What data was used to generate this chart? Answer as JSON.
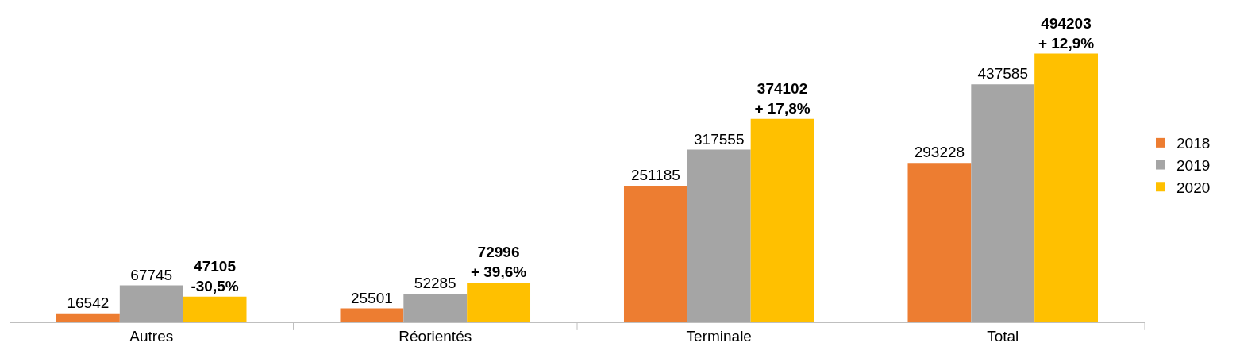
{
  "chart_data": {
    "type": "bar",
    "categories": [
      "Autres",
      "Réorientés",
      "Terminale",
      "Total"
    ],
    "series": [
      {
        "name": "2018",
        "color": "#ed7d31",
        "values": [
          16542,
          25501,
          251185,
          293228
        ]
      },
      {
        "name": "2019",
        "color": "#a5a5a5",
        "values": [
          67745,
          52285,
          317555,
          437585
        ]
      },
      {
        "name": "2020",
        "color": "#ffc000",
        "values": [
          47105,
          72996,
          374102,
          494203
        ],
        "value_labels": [
          "47105\n-30,5%",
          "72996\n+ 39,6%",
          "374102\n+ 17,8%",
          "494203\n+ 12,9%"
        ]
      }
    ],
    "data_labels": true,
    "grid": false,
    "legend": "right",
    "tick_labels": "x"
  }
}
